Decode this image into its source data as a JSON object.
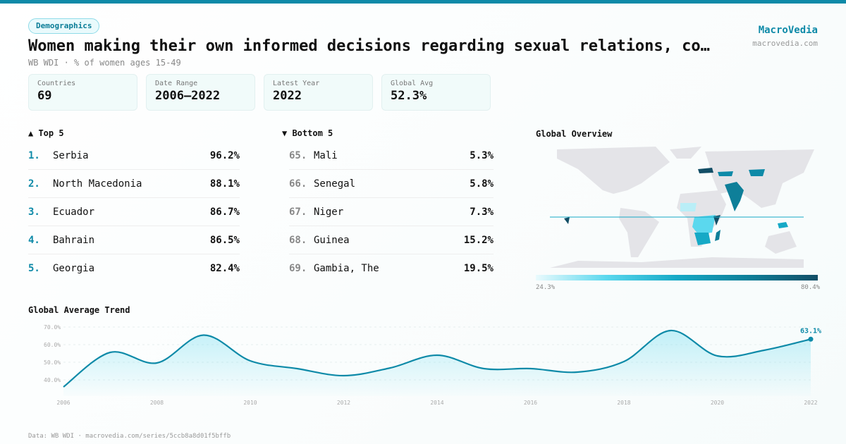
{
  "header": {
    "tag": "Demographics",
    "title": "Women making their own informed decisions regarding sexual relations, co…",
    "subtitle": "WB WDI · % of women ages 15-49",
    "brand": "MacroVedia",
    "brand_url": "macrovedia.com"
  },
  "stats": [
    {
      "label": "Countries",
      "value": "69"
    },
    {
      "label": "Date Range",
      "value": "2006–2022"
    },
    {
      "label": "Latest Year",
      "value": "2022"
    },
    {
      "label": "Global Avg",
      "value": "52.3%"
    }
  ],
  "top": {
    "heading": "▲ Top 5",
    "items": [
      {
        "rank": "1.",
        "country": "Serbia",
        "value": "96.2%"
      },
      {
        "rank": "2.",
        "country": "North Macedonia",
        "value": "88.1%"
      },
      {
        "rank": "3.",
        "country": "Ecuador",
        "value": "86.7%"
      },
      {
        "rank": "4.",
        "country": "Bahrain",
        "value": "86.5%"
      },
      {
        "rank": "5.",
        "country": "Georgia",
        "value": "82.4%"
      }
    ]
  },
  "bottom": {
    "heading": "▼ Bottom 5",
    "items": [
      {
        "rank": "65.",
        "country": "Mali",
        "value": "5.3%"
      },
      {
        "rank": "66.",
        "country": "Senegal",
        "value": "5.8%"
      },
      {
        "rank": "67.",
        "country": "Niger",
        "value": "7.3%"
      },
      {
        "rank": "68.",
        "country": "Guinea",
        "value": "15.2%"
      },
      {
        "rank": "69.",
        "country": "Gambia, The",
        "value": "19.5%"
      }
    ]
  },
  "map": {
    "title": "Global Overview",
    "legend_min": "24.3%",
    "legend_max": "80.4%",
    "colors": {
      "low": "#eafafd",
      "high": "#124e66",
      "land": "#e4e4e8"
    }
  },
  "chart_data": {
    "type": "area",
    "title": "Global Average Trend",
    "x": [
      2006,
      2007,
      2008,
      2009,
      2010,
      2011,
      2012,
      2013,
      2014,
      2015,
      2016,
      2017,
      2018,
      2019,
      2020,
      2021,
      2022
    ],
    "values": [
      36.0,
      55.6,
      49.6,
      65.4,
      50.8,
      46.4,
      42.4,
      46.8,
      54.0,
      46.4,
      46.4,
      44.4,
      50.4,
      68.0,
      53.6,
      56.8,
      63.1
    ],
    "yticks": [
      "40.0%",
      "50.0%",
      "60.0%",
      "70.0%"
    ],
    "xticks": [
      "2006",
      "2008",
      "2010",
      "2012",
      "2014",
      "2016",
      "2018",
      "2020",
      "2022"
    ],
    "ylim": [
      32,
      72
    ],
    "last_label": "63.1%",
    "color": "#0e8aa8"
  },
  "footer": "Data: WB WDI · macrovedia.com/series/5ccb8a8d01f5bffb"
}
